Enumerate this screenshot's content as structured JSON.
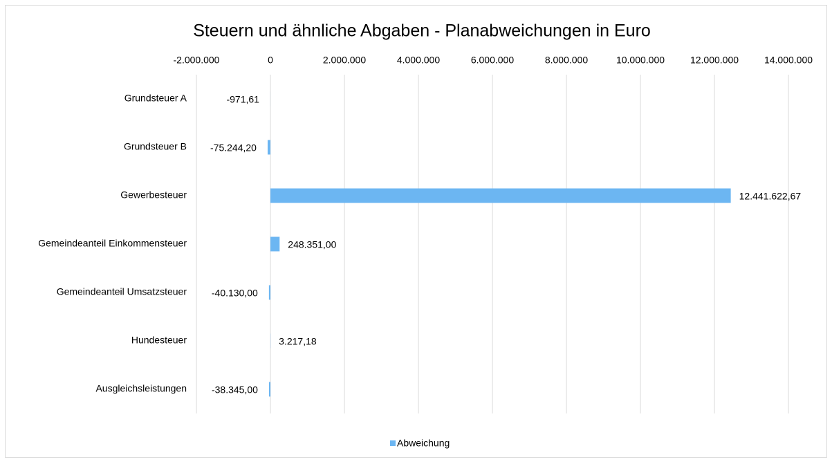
{
  "chart_data": {
    "type": "barh",
    "title": "Steuern und ähnliche Abgaben - Planabweichungen in Euro",
    "categories": [
      "Grundsteuer A",
      "Grundsteuer B",
      "Gewerbesteuer",
      "Gemeindeanteil Einkommensteuer",
      "Gemeindeanteil Umsatzsteuer",
      "Hundesteuer",
      "Ausgleichsleistungen"
    ],
    "series": [
      {
        "name": "Abweichung",
        "color": "#6cb6f2",
        "values": [
          -971.61,
          -75244.2,
          12441622.67,
          248351.0,
          -40130.0,
          3217.18,
          -38345.0
        ],
        "value_labels": [
          "-971,61",
          "-75.244,20",
          "12.441.622,67",
          "248.351,00",
          "-40.130,00",
          "3.217,18",
          "-38.345,00"
        ]
      }
    ],
    "xlim": [
      -2000000,
      14000000
    ],
    "xticks": [
      {
        "value": -2000000,
        "label": "-2.000.000"
      },
      0,
      {
        "value": 2000000,
        "label": "2.000.000"
      },
      {
        "value": 4000000,
        "label": "4.000.000"
      },
      {
        "value": 6000000,
        "label": "6.000.000"
      },
      {
        "value": 8000000,
        "label": "8.000.000"
      },
      {
        "value": 10000000,
        "label": "10.000.000"
      },
      {
        "value": 12000000,
        "label": "12.000.000"
      },
      {
        "value": 14000000,
        "label": "14.000.000"
      }
    ],
    "grid": true,
    "legend": "bottom"
  }
}
